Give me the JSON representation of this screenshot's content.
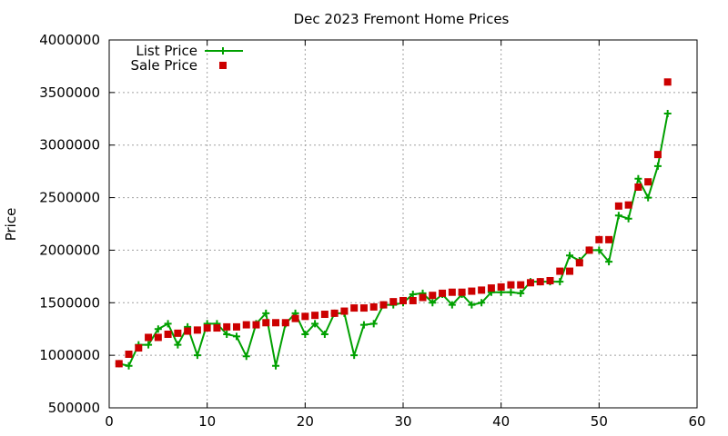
{
  "chart_data": {
    "type": "line",
    "title": "Dec 2023 Fremont Home Prices",
    "xlabel": "",
    "ylabel": "Price",
    "xlim": [
      0,
      60
    ],
    "ylim": [
      500000,
      4000000
    ],
    "x_ticks": [
      0,
      10,
      20,
      30,
      40,
      50,
      60
    ],
    "y_ticks": [
      500000,
      1000000,
      1500000,
      2000000,
      2500000,
      3000000,
      3500000,
      4000000
    ],
    "grid": true,
    "legend_position": "top-left",
    "series": [
      {
        "name": "List Price",
        "style": "line with plus markers",
        "color": "#00a000",
        "x": [
          1,
          2,
          3,
          4,
          5,
          6,
          7,
          8,
          9,
          10,
          11,
          12,
          13,
          14,
          15,
          16,
          17,
          18,
          19,
          20,
          21,
          22,
          23,
          24,
          25,
          26,
          27,
          28,
          29,
          30,
          31,
          32,
          33,
          34,
          35,
          36,
          37,
          38,
          39,
          40,
          41,
          42,
          43,
          44,
          45,
          46,
          47,
          48,
          49,
          50,
          51,
          52,
          53,
          54,
          55,
          56,
          57
        ],
        "y": [
          920000,
          900000,
          1100000,
          1100000,
          1250000,
          1300000,
          1100000,
          1270000,
          1000000,
          1300000,
          1300000,
          1200000,
          1180000,
          990000,
          1300000,
          1400000,
          900000,
          1300000,
          1400000,
          1200000,
          1300000,
          1200000,
          1400000,
          1400000,
          1000000,
          1290000,
          1300000,
          1480000,
          1480000,
          1500000,
          1580000,
          1590000,
          1500000,
          1580000,
          1480000,
          1580000,
          1480000,
          1500000,
          1600000,
          1600000,
          1600000,
          1590000,
          1700000,
          1700000,
          1700000,
          1700000,
          1950000,
          1900000,
          2000000,
          2000000,
          1890000,
          2330000,
          2300000,
          2680000,
          2500000,
          2800000,
          3300000
        ]
      },
      {
        "name": "Sale Price",
        "style": "square markers",
        "color": "#cc0000",
        "x": [
          1,
          2,
          3,
          4,
          5,
          6,
          7,
          8,
          9,
          10,
          11,
          12,
          13,
          14,
          15,
          16,
          17,
          18,
          19,
          20,
          21,
          22,
          23,
          24,
          25,
          26,
          27,
          28,
          29,
          30,
          31,
          32,
          33,
          34,
          35,
          36,
          37,
          38,
          39,
          40,
          41,
          42,
          43,
          44,
          45,
          46,
          47,
          48,
          49,
          50,
          51,
          52,
          53,
          54,
          55,
          56,
          57
        ],
        "y": [
          920000,
          1010000,
          1070000,
          1170000,
          1170000,
          1200000,
          1210000,
          1230000,
          1240000,
          1260000,
          1260000,
          1270000,
          1270000,
          1290000,
          1290000,
          1310000,
          1310000,
          1310000,
          1350000,
          1370000,
          1380000,
          1390000,
          1400000,
          1420000,
          1450000,
          1450000,
          1460000,
          1480000,
          1510000,
          1520000,
          1520000,
          1550000,
          1570000,
          1590000,
          1600000,
          1600000,
          1610000,
          1620000,
          1640000,
          1650000,
          1670000,
          1670000,
          1690000,
          1700000,
          1710000,
          1800000,
          1800000,
          1880000,
          2000000,
          2100000,
          2100000,
          2420000,
          2430000,
          2600000,
          2650000,
          2910000,
          3600000
        ]
      }
    ]
  }
}
